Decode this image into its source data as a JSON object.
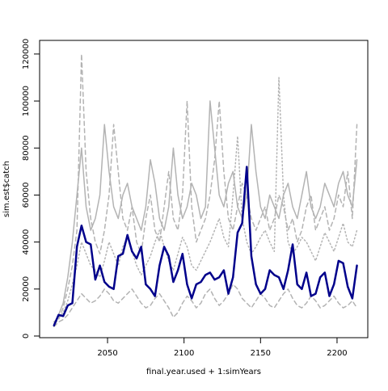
{
  "chart_data": {
    "type": "line",
    "xlabel": "final.year.used + 1:simYears",
    "ylabel": "sim.est$catch",
    "xlim": [
      2005.6,
      2220.1
    ],
    "ylim": [
      -700,
      125800
    ],
    "xticks": [
      2050,
      2100,
      2150,
      2200
    ],
    "yticks": [
      0,
      20000,
      40000,
      60000,
      80000,
      100000,
      120000
    ],
    "x": [
      2015,
      2018,
      2021,
      2024,
      2027,
      2030,
      2033,
      2036,
      2039,
      2042,
      2045,
      2048,
      2051,
      2054,
      2057,
      2060,
      2063,
      2066,
      2069,
      2072,
      2075,
      2078,
      2081,
      2084,
      2087,
      2090,
      2093,
      2096,
      2099,
      2102,
      2105,
      2108,
      2111,
      2114,
      2117,
      2120,
      2123,
      2126,
      2129,
      2132,
      2135,
      2138,
      2141,
      2144,
      2147,
      2150,
      2153,
      2156,
      2159,
      2162,
      2165,
      2168,
      2171,
      2174,
      2177,
      2180,
      2183,
      2186,
      2189,
      2192,
      2195,
      2198,
      2201,
      2204,
      2207,
      2210,
      2213
    ],
    "series": [
      {
        "color": "#b3b3b3",
        "linetype": "dashed",
        "width": 1.5,
        "values": [
          5000,
          7000,
          12000,
          20000,
          30000,
          45000,
          120000,
          70000,
          50000,
          40000,
          35000,
          45000,
          60000,
          90000,
          70000,
          50000,
          45000,
          55000,
          40000,
          35000,
          50000,
          60000,
          45000,
          40000,
          55000,
          70000,
          50000,
          45000,
          60000,
          100000,
          55000,
          40000,
          45000,
          50000,
          60000,
          75000,
          100000,
          70000,
          50000,
          45000,
          55000,
          65000,
          60000,
          50000,
          45000,
          50000,
          55000,
          45000,
          50000,
          60000,
          55000,
          45000,
          50000,
          40000,
          45000,
          55000,
          60000,
          45000,
          50000,
          55000,
          45000,
          50000,
          60000,
          55000,
          70000,
          50000,
          90000
        ]
      },
      {
        "color": "#b3b3b3",
        "linetype": "dotted",
        "width": 1.5,
        "values": [
          6000,
          8000,
          10000,
          15000,
          22000,
          30000,
          40000,
          35000,
          30000,
          28000,
          25000,
          32000,
          40000,
          35000,
          30000,
          38000,
          42000,
          36000,
          30000,
          26000,
          30000,
          34000,
          40000,
          45000,
          38000,
          32000,
          28000,
          35000,
          42000,
          38000,
          30000,
          28000,
          32000,
          36000,
          40000,
          45000,
          50000,
          42000,
          38000,
          60000,
          85000,
          50000,
          40000,
          35000,
          38000,
          42000,
          45000,
          40000,
          36000,
          110000,
          60000,
          40000,
          35000,
          38000,
          42000,
          40000,
          36000,
          32000,
          38000,
          44000,
          40000,
          36000,
          42000,
          48000,
          40000,
          38000,
          45000
        ]
      },
      {
        "color": "#b3b3b3",
        "linetype": "dashed",
        "width": 1.5,
        "values": [
          4000,
          6000,
          7000,
          9000,
          12000,
          15000,
          18000,
          16000,
          14000,
          15000,
          17000,
          20000,
          18000,
          15000,
          14000,
          16000,
          18000,
          20000,
          17000,
          14000,
          12000,
          13000,
          16000,
          18000,
          15000,
          12000,
          8000,
          10000,
          14000,
          17000,
          15000,
          12000,
          14000,
          18000,
          20000,
          16000,
          13000,
          15000,
          18000,
          22000,
          20000,
          16000,
          14000,
          12000,
          15000,
          18000,
          16000,
          13000,
          12000,
          15000,
          18000,
          20000,
          16000,
          13000,
          12000,
          14000,
          17000,
          15000,
          12000,
          13000,
          15000,
          17000,
          14000,
          12000,
          13000,
          15000,
          12000
        ]
      },
      {
        "color": "#b3b3b3",
        "linetype": "solid",
        "width": 1.5,
        "values": [
          5000,
          9000,
          14000,
          25000,
          40000,
          60000,
          80000,
          55000,
          45000,
          50000,
          60000,
          90000,
          70000,
          55000,
          50000,
          60000,
          65000,
          55000,
          50000,
          45000,
          55000,
          75000,
          65000,
          50000,
          45000,
          55000,
          80000,
          60000,
          50000,
          55000,
          65000,
          60000,
          50000,
          55000,
          100000,
          80000,
          60000,
          55000,
          65000,
          70000,
          55000,
          50000,
          60000,
          90000,
          70000,
          55000,
          50000,
          60000,
          55000,
          50000,
          60000,
          65000,
          55000,
          50000,
          60000,
          70000,
          55000,
          50000,
          55000,
          65000,
          60000,
          55000,
          65000,
          70000,
          60000,
          55000,
          75000
        ]
      },
      {
        "color": "#00008b",
        "linetype": "solid",
        "width": 2.5,
        "values": [
          4500,
          9000,
          8500,
          13000,
          14000,
          38000,
          47000,
          40000,
          39000,
          24000,
          30000,
          23000,
          21000,
          20000,
          34000,
          35000,
          43000,
          36000,
          33000,
          38000,
          22000,
          20000,
          17000,
          30000,
          38000,
          34000,
          23000,
          28000,
          35000,
          22000,
          16000,
          22000,
          23000,
          26000,
          27000,
          24000,
          25000,
          28000,
          18000,
          25000,
          44000,
          48000,
          72000,
          34000,
          22000,
          18000,
          20000,
          28000,
          26000,
          25000,
          20000,
          28000,
          39000,
          22000,
          20000,
          27000,
          17000,
          18000,
          25000,
          27000,
          17000,
          22000,
          32000,
          31000,
          21000,
          16000,
          30000
        ]
      }
    ]
  }
}
